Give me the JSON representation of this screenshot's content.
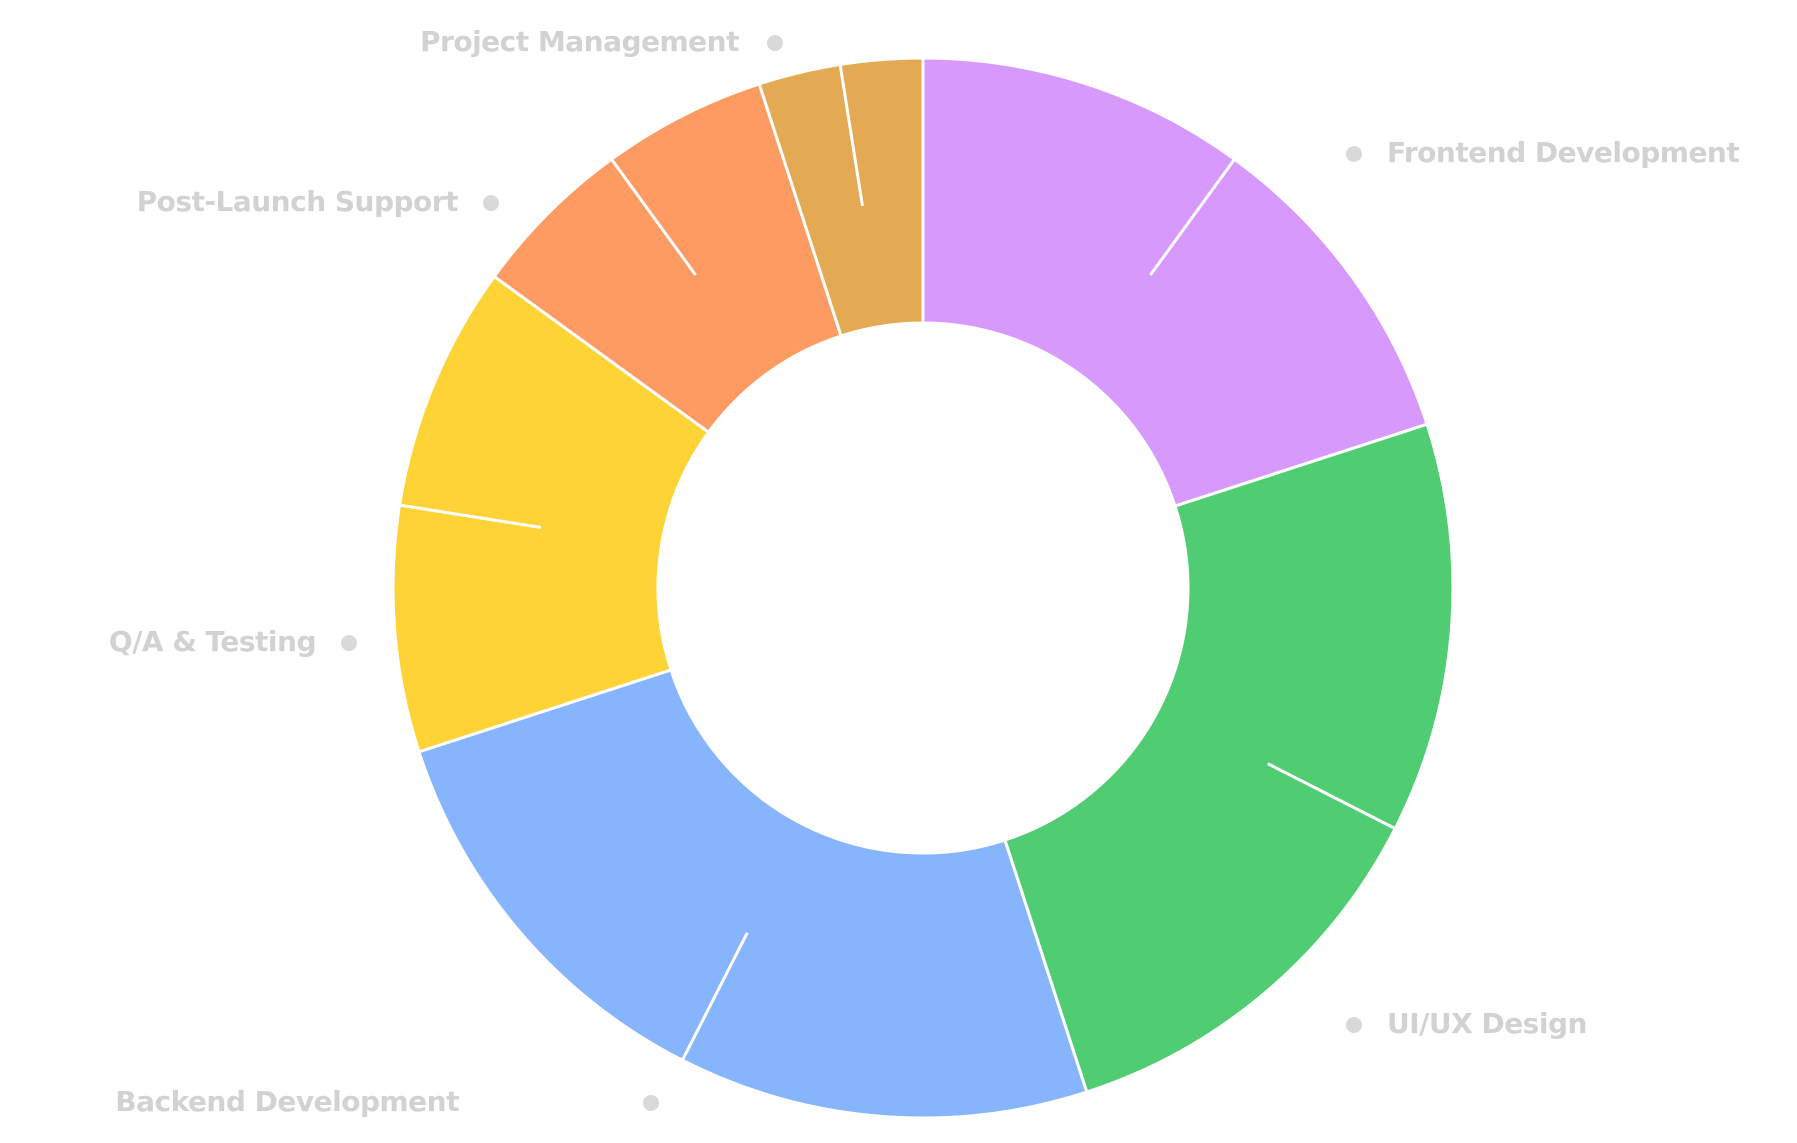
{
  "chart_data": {
    "type": "donut",
    "categories": [
      "Frontend Development",
      "UI/UX Design",
      "Backend Development",
      "Q/A & Testing",
      "Post-Launch Support",
      "Project Management"
    ],
    "values": [
      20,
      25,
      25,
      15,
      10,
      5
    ],
    "colors": [
      "#d899fd",
      "#50cc72",
      "#86b4fd",
      "#fdd335",
      "#fe9b62",
      "#e3a953"
    ]
  }
}
